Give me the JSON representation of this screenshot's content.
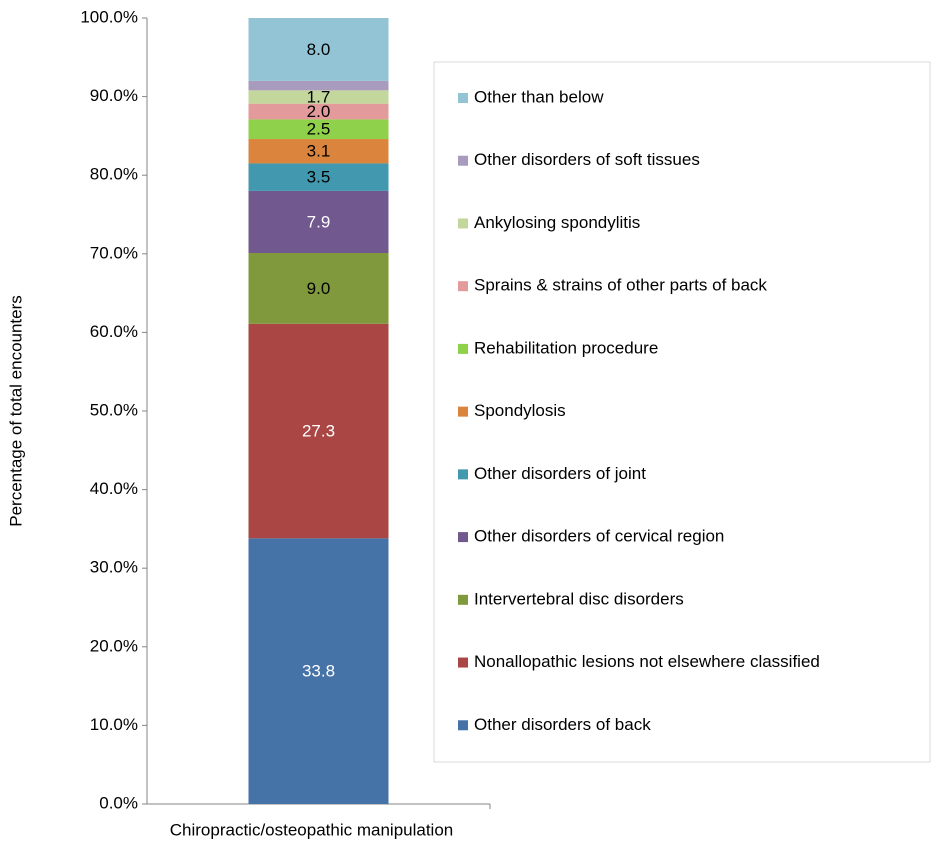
{
  "chart_data": {
    "type": "stacked-bar",
    "y_label": "Percentage of total encounters",
    "categories": [
      "Chiropractic/osteopathic manipulation"
    ],
    "ylim": [
      0,
      100
    ],
    "yticks": [
      {
        "value": 0,
        "label": "0.0%"
      },
      {
        "value": 10,
        "label": "10.0%"
      },
      {
        "value": 20,
        "label": "20.0%"
      },
      {
        "value": 30,
        "label": "30.0%"
      },
      {
        "value": 40,
        "label": "40.0%"
      },
      {
        "value": 50,
        "label": "50.0%"
      },
      {
        "value": 60,
        "label": "60.0%"
      },
      {
        "value": 70,
        "label": "70.0%"
      },
      {
        "value": 80,
        "label": "80.0%"
      },
      {
        "value": 90,
        "label": "90.0%"
      },
      {
        "value": 100,
        "label": "100.0%"
      }
    ],
    "legend": "right",
    "series": [
      {
        "name": "Other disorders of back",
        "color": "#4572a7",
        "label_color": "#ffffff",
        "values": [
          33.8
        ],
        "value_labels": [
          "33.8"
        ]
      },
      {
        "name": "Nonallopathic lesions not elsewhere classified",
        "color": "#aa4643",
        "label_color": "#ffffff",
        "values": [
          27.3
        ],
        "value_labels": [
          "27.3"
        ]
      },
      {
        "name": "Intervertebral disc disorders",
        "color": "#7f993c",
        "label_color": "#000000",
        "values": [
          9.0
        ],
        "value_labels": [
          "9.0"
        ]
      },
      {
        "name": "Other disorders of cervical region",
        "color": "#71588f",
        "label_color": "#ffffff",
        "values": [
          7.9
        ],
        "value_labels": [
          "7.9"
        ]
      },
      {
        "name": "Other disorders of joint",
        "color": "#4198af",
        "label_color": "#000000",
        "values": [
          3.5
        ],
        "value_labels": [
          "3.5"
        ]
      },
      {
        "name": "Spondylosis",
        "color": "#db843d",
        "label_color": "#000000",
        "values": [
          3.1
        ],
        "value_labels": [
          "3.1"
        ]
      },
      {
        "name": "Rehabilitation procedure",
        "color": "#8fd14a",
        "label_color": "#000000",
        "values": [
          2.5
        ],
        "value_labels": [
          "2.5"
        ]
      },
      {
        "name": "Sprains & strains of other parts of back",
        "color": "#e39a9a",
        "label_color": "#000000",
        "values": [
          2.0
        ],
        "value_labels": [
          "2.0"
        ]
      },
      {
        "name": "Ankylosing spondylitis",
        "color": "#c3d69b",
        "label_color": "#000000",
        "values": [
          1.7
        ],
        "value_labels": [
          "1.7"
        ]
      },
      {
        "name": "Other disorders of soft tissues",
        "color": "#a99bbd",
        "values": [
          1.2
        ]
      },
      {
        "name": "Other than below",
        "color": "#93c4d6",
        "label_color": "#000000",
        "values": [
          8.0
        ],
        "value_labels": [
          "8.0"
        ]
      }
    ]
  }
}
